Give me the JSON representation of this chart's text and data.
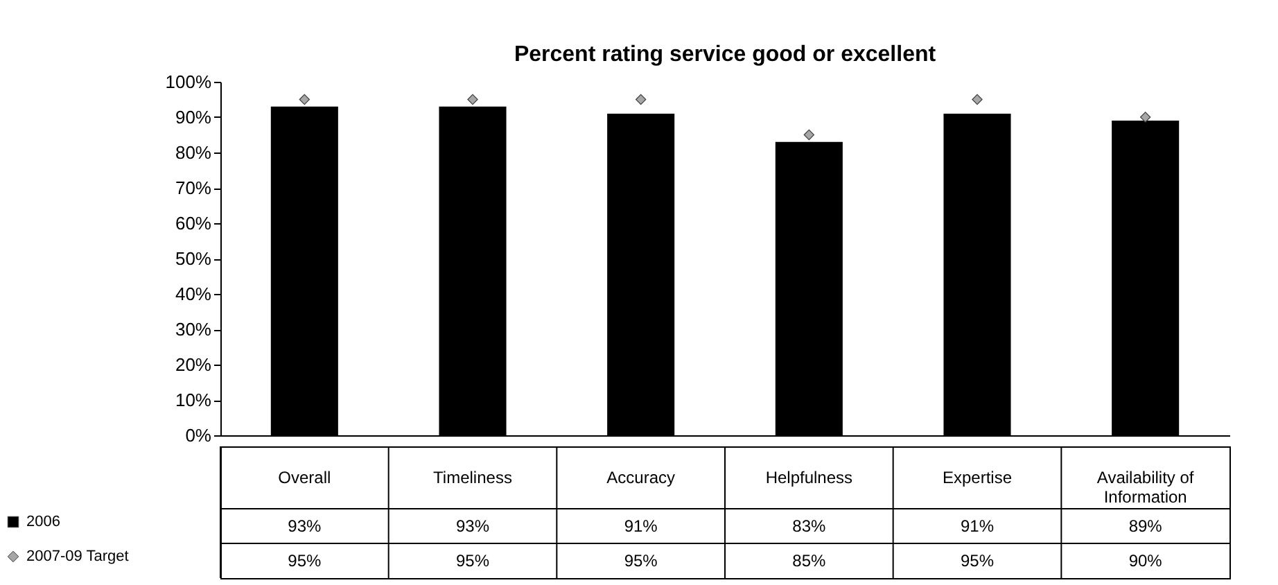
{
  "chart_data": {
    "type": "bar",
    "title": "Percent rating service good or excellent",
    "categories": [
      "Overall",
      "Timeliness",
      "Accuracy",
      "Helpfulness",
      "Expertise",
      "Availability of Information"
    ],
    "series": [
      {
        "name": "2006",
        "color": "#000000",
        "values": [
          93,
          93,
          91,
          83,
          91,
          89
        ],
        "value_labels": [
          "93%",
          "93%",
          "91%",
          "83%",
          "91%",
          "89%"
        ]
      },
      {
        "name": "2007-09 Target",
        "type": "scatter",
        "marker": "diamond",
        "color": "#a6a6a6",
        "values": [
          95,
          95,
          95,
          85,
          95,
          90
        ],
        "value_labels": [
          "95%",
          "95%",
          "95%",
          "85%",
          "95%",
          "90%"
        ]
      }
    ],
    "ylim": [
      0,
      100
    ],
    "yticks": [
      {
        "value": 0,
        "label": "0%"
      },
      {
        "value": 10,
        "label": "10%"
      },
      {
        "value": 20,
        "label": "20%"
      },
      {
        "value": 30,
        "label": "30%"
      },
      {
        "value": 40,
        "label": "40%"
      },
      {
        "value": 50,
        "label": "50%"
      },
      {
        "value": 60,
        "label": "60%"
      },
      {
        "value": 70,
        "label": "70%"
      },
      {
        "value": 80,
        "label": "80%"
      },
      {
        "value": 90,
        "label": "90%"
      },
      {
        "value": 100,
        "label": "100%"
      }
    ],
    "legend": "bottom left"
  }
}
